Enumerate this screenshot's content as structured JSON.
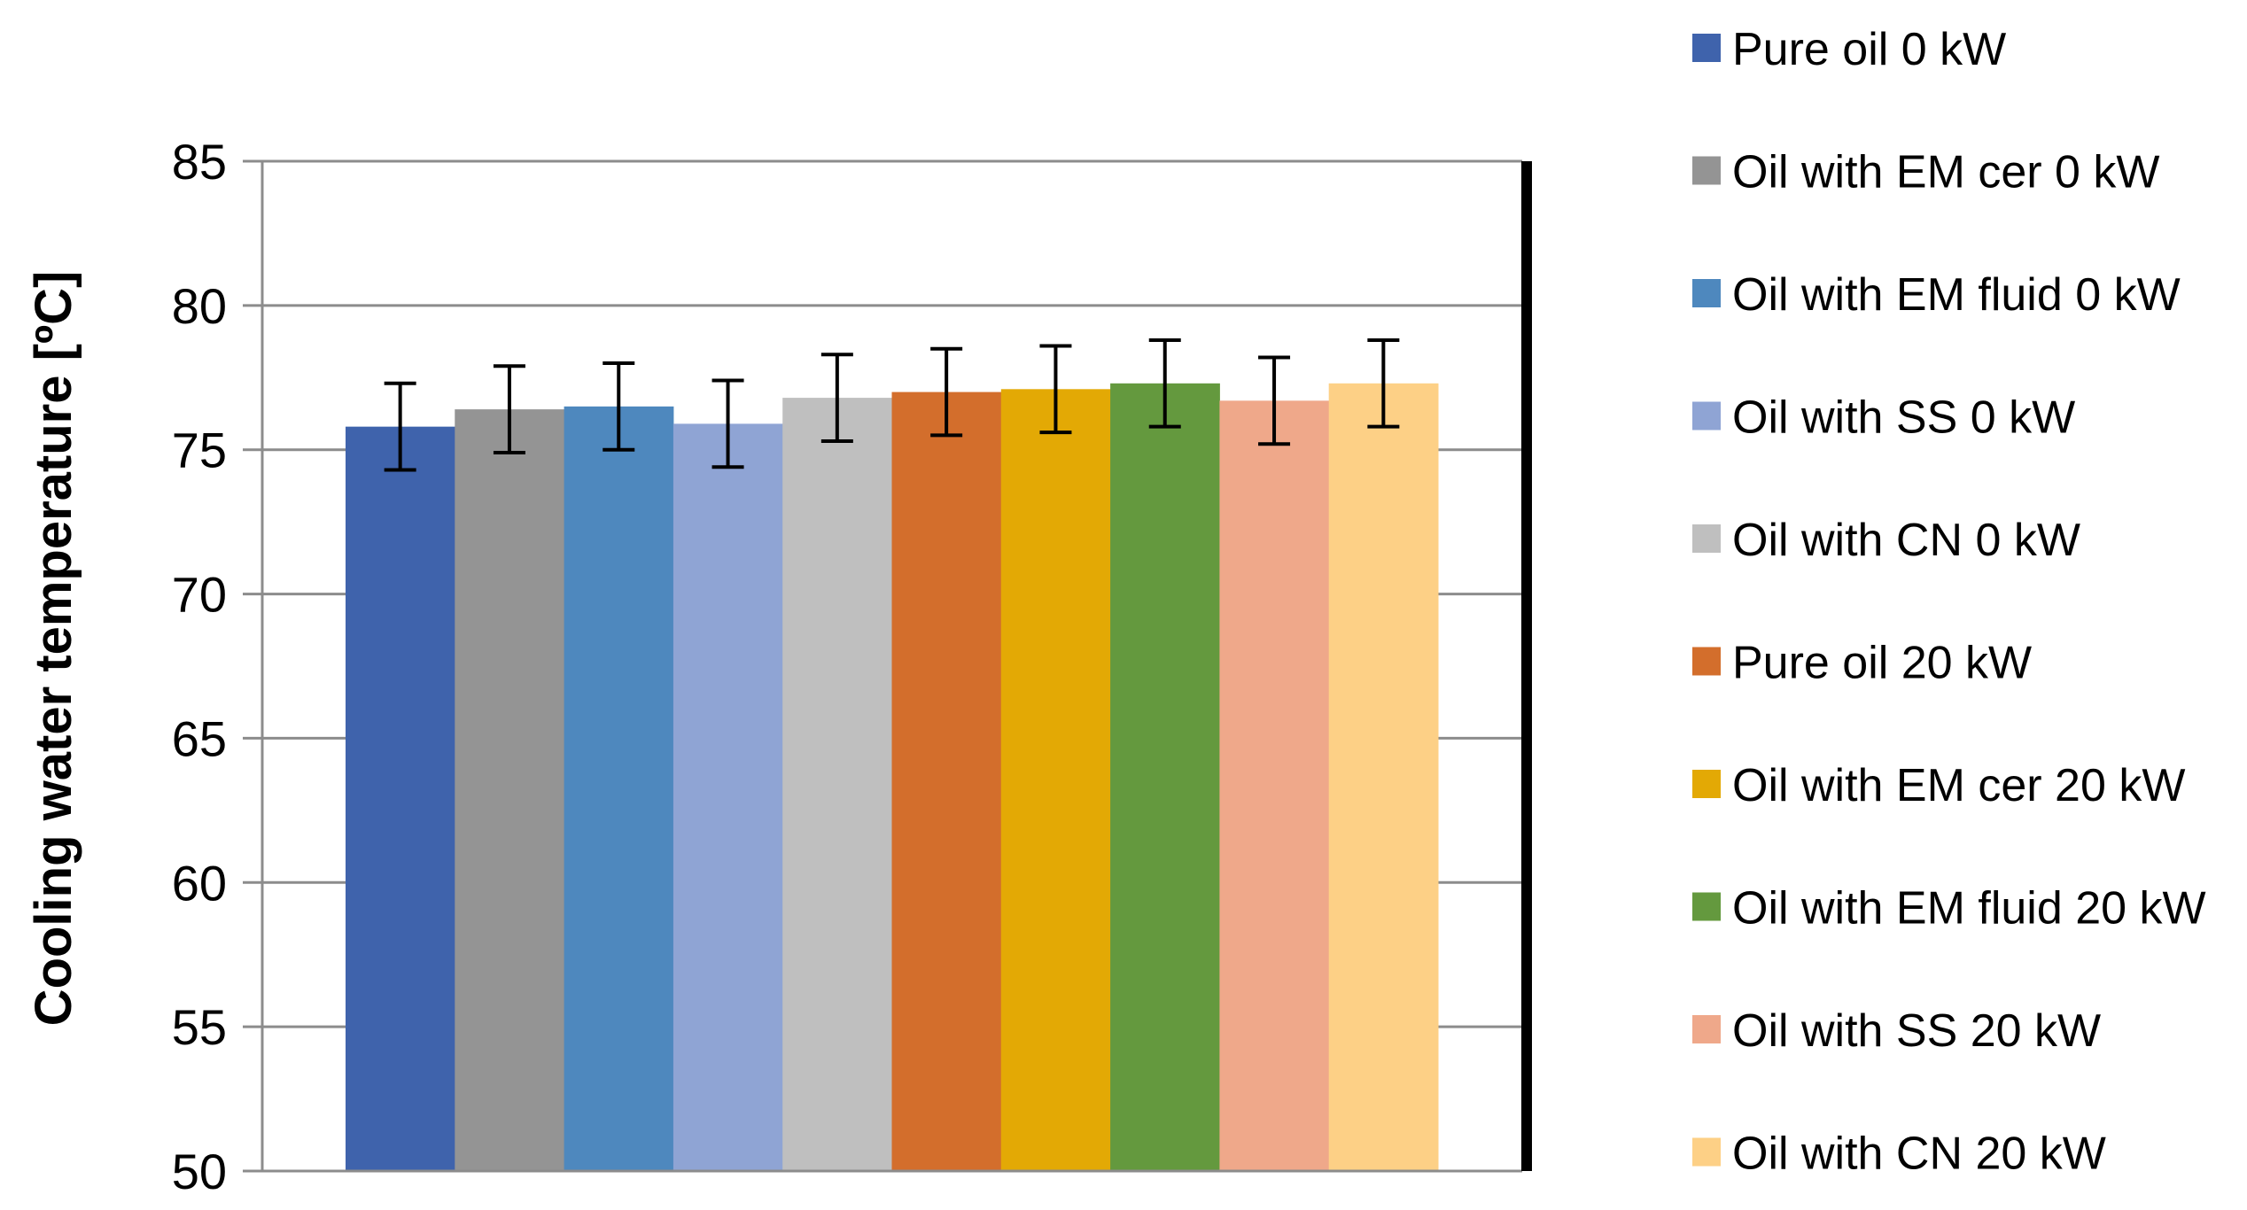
{
  "chart_data": {
    "type": "bar",
    "title": "",
    "xlabel": "",
    "ylabel": "Cooling water temperature [ºC]",
    "ylim": [
      50,
      85
    ],
    "yticks": [
      50,
      55,
      60,
      65,
      70,
      75,
      80,
      85
    ],
    "grid": true,
    "legend_position": "right",
    "series": [
      {
        "name": "Pure oil 0 kW",
        "value": 75.8,
        "error": 1.5,
        "color": "#3F63AC"
      },
      {
        "name": "Oil with EM cer 0 kW",
        "value": 76.4,
        "error": 1.5,
        "color": "#949494"
      },
      {
        "name": "Oil with EM fluid 0 kW",
        "value": 76.5,
        "error": 1.5,
        "color": "#4E88BE"
      },
      {
        "name": "Oil with SS 0 kW",
        "value": 75.9,
        "error": 1.5,
        "color": "#8FA4D4"
      },
      {
        "name": "Oil with CN 0 kW",
        "value": 76.8,
        "error": 1.5,
        "color": "#BFBFBF"
      },
      {
        "name": "Pure oil 20 kW",
        "value": 77.0,
        "error": 1.5,
        "color": "#D36E2C"
      },
      {
        "name": "Oil with EM cer 20 kW",
        "value": 77.1,
        "error": 1.5,
        "color": "#E3A905"
      },
      {
        "name": "Oil with EM fluid 20 kW",
        "value": 77.3,
        "error": 1.5,
        "color": "#64993E"
      },
      {
        "name": "Oil with SS 20 kW",
        "value": 76.7,
        "error": 1.5,
        "color": "#EFA88A"
      },
      {
        "name": "Oil with CN 20 kW",
        "value": 77.3,
        "error": 1.5,
        "color": "#FDD086"
      }
    ]
  }
}
